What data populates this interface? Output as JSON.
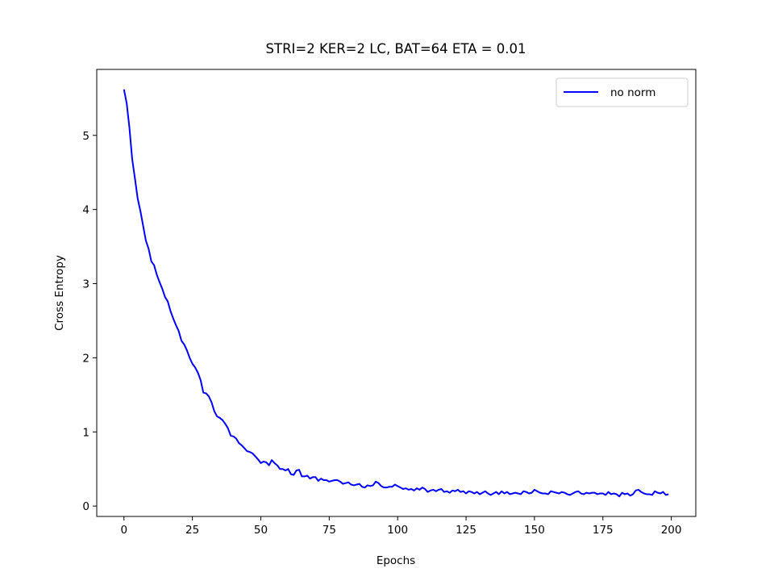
{
  "chart_data": {
    "type": "line",
    "title": "STRI=2 KER=2 LC, BAT=64 ETA = 0.01",
    "x_label": "Epochs",
    "y_label": "Cross Entropy",
    "x": [
      0,
      1,
      2,
      3,
      4,
      5,
      6,
      7,
      8,
      9,
      10,
      11,
      12,
      13,
      14,
      15,
      16,
      17,
      18,
      19,
      20,
      21,
      22,
      23,
      24,
      25,
      26,
      27,
      28,
      29,
      30,
      31,
      32,
      33,
      34,
      35,
      36,
      37,
      38,
      39,
      40,
      41,
      42,
      43,
      44,
      45,
      46,
      47,
      48,
      49,
      50,
      51,
      52,
      53,
      54,
      55,
      56,
      57,
      58,
      59,
      60,
      61,
      62,
      63,
      64,
      65,
      66,
      67,
      68,
      69,
      70,
      71,
      72,
      73,
      74,
      75,
      76,
      77,
      78,
      79,
      80,
      81,
      82,
      83,
      84,
      85,
      86,
      87,
      88,
      89,
      90,
      91,
      92,
      93,
      94,
      95,
      96,
      97,
      98,
      99,
      100,
      101,
      102,
      103,
      104,
      105,
      106,
      107,
      108,
      109,
      110,
      111,
      112,
      113,
      114,
      115,
      116,
      117,
      118,
      119,
      120,
      121,
      122,
      123,
      124,
      125,
      126,
      127,
      128,
      129,
      130,
      131,
      132,
      133,
      134,
      135,
      136,
      137,
      138,
      139,
      140,
      141,
      142,
      143,
      144,
      145,
      146,
      147,
      148,
      149,
      150,
      151,
      152,
      153,
      154,
      155,
      156,
      157,
      158,
      159,
      160,
      161,
      162,
      163,
      164,
      165,
      166,
      167,
      168,
      169,
      170,
      171,
      172,
      173,
      174,
      175,
      176,
      177,
      178,
      179,
      180,
      181,
      182,
      183,
      184,
      185,
      186,
      187,
      188,
      189,
      190,
      191,
      192,
      193,
      194,
      195,
      196,
      197,
      198,
      199
    ],
    "series": [
      {
        "name": "no norm",
        "color": "#0000ff",
        "values": [
          5.62,
          5.43,
          5.1,
          4.68,
          4.42,
          4.15,
          3.98,
          3.78,
          3.58,
          3.47,
          3.3,
          3.25,
          3.12,
          3.02,
          2.93,
          2.82,
          2.76,
          2.63,
          2.53,
          2.44,
          2.36,
          2.23,
          2.18,
          2.1,
          2.0,
          1.92,
          1.87,
          1.8,
          1.7,
          1.53,
          1.52,
          1.48,
          1.4,
          1.28,
          1.21,
          1.19,
          1.16,
          1.11,
          1.05,
          0.95,
          0.94,
          0.91,
          0.85,
          0.82,
          0.78,
          0.74,
          0.73,
          0.71,
          0.67,
          0.63,
          0.58,
          0.6,
          0.59,
          0.55,
          0.62,
          0.58,
          0.55,
          0.5,
          0.5,
          0.48,
          0.5,
          0.43,
          0.42,
          0.48,
          0.49,
          0.4,
          0.4,
          0.41,
          0.37,
          0.39,
          0.39,
          0.34,
          0.37,
          0.35,
          0.35,
          0.33,
          0.34,
          0.35,
          0.35,
          0.33,
          0.3,
          0.31,
          0.32,
          0.29,
          0.28,
          0.29,
          0.3,
          0.26,
          0.25,
          0.28,
          0.27,
          0.28,
          0.33,
          0.31,
          0.27,
          0.25,
          0.25,
          0.26,
          0.26,
          0.29,
          0.27,
          0.25,
          0.23,
          0.24,
          0.22,
          0.23,
          0.21,
          0.24,
          0.22,
          0.25,
          0.23,
          0.19,
          0.21,
          0.22,
          0.2,
          0.22,
          0.23,
          0.19,
          0.2,
          0.18,
          0.21,
          0.2,
          0.22,
          0.19,
          0.2,
          0.17,
          0.2,
          0.19,
          0.17,
          0.19,
          0.16,
          0.18,
          0.2,
          0.17,
          0.15,
          0.17,
          0.19,
          0.16,
          0.2,
          0.17,
          0.19,
          0.16,
          0.17,
          0.18,
          0.17,
          0.16,
          0.2,
          0.19,
          0.17,
          0.18,
          0.22,
          0.2,
          0.18,
          0.17,
          0.17,
          0.16,
          0.2,
          0.19,
          0.18,
          0.17,
          0.19,
          0.18,
          0.16,
          0.15,
          0.17,
          0.19,
          0.2,
          0.17,
          0.16,
          0.18,
          0.17,
          0.18,
          0.18,
          0.16,
          0.17,
          0.17,
          0.15,
          0.19,
          0.16,
          0.17,
          0.16,
          0.13,
          0.18,
          0.16,
          0.17,
          0.14,
          0.16,
          0.21,
          0.22,
          0.19,
          0.17,
          0.16,
          0.16,
          0.15,
          0.2,
          0.18,
          0.17,
          0.19,
          0.15,
          0.16
        ]
      }
    ],
    "xlim": [
      -9.95,
      208.95
    ],
    "xticks": [
      0,
      25,
      50,
      75,
      100,
      125,
      150,
      175,
      200
    ],
    "ylim": [
      -0.14,
      5.89
    ],
    "yticks": [
      0,
      1,
      2,
      3,
      4,
      5
    ],
    "grid": false,
    "legend": "upper right"
  }
}
